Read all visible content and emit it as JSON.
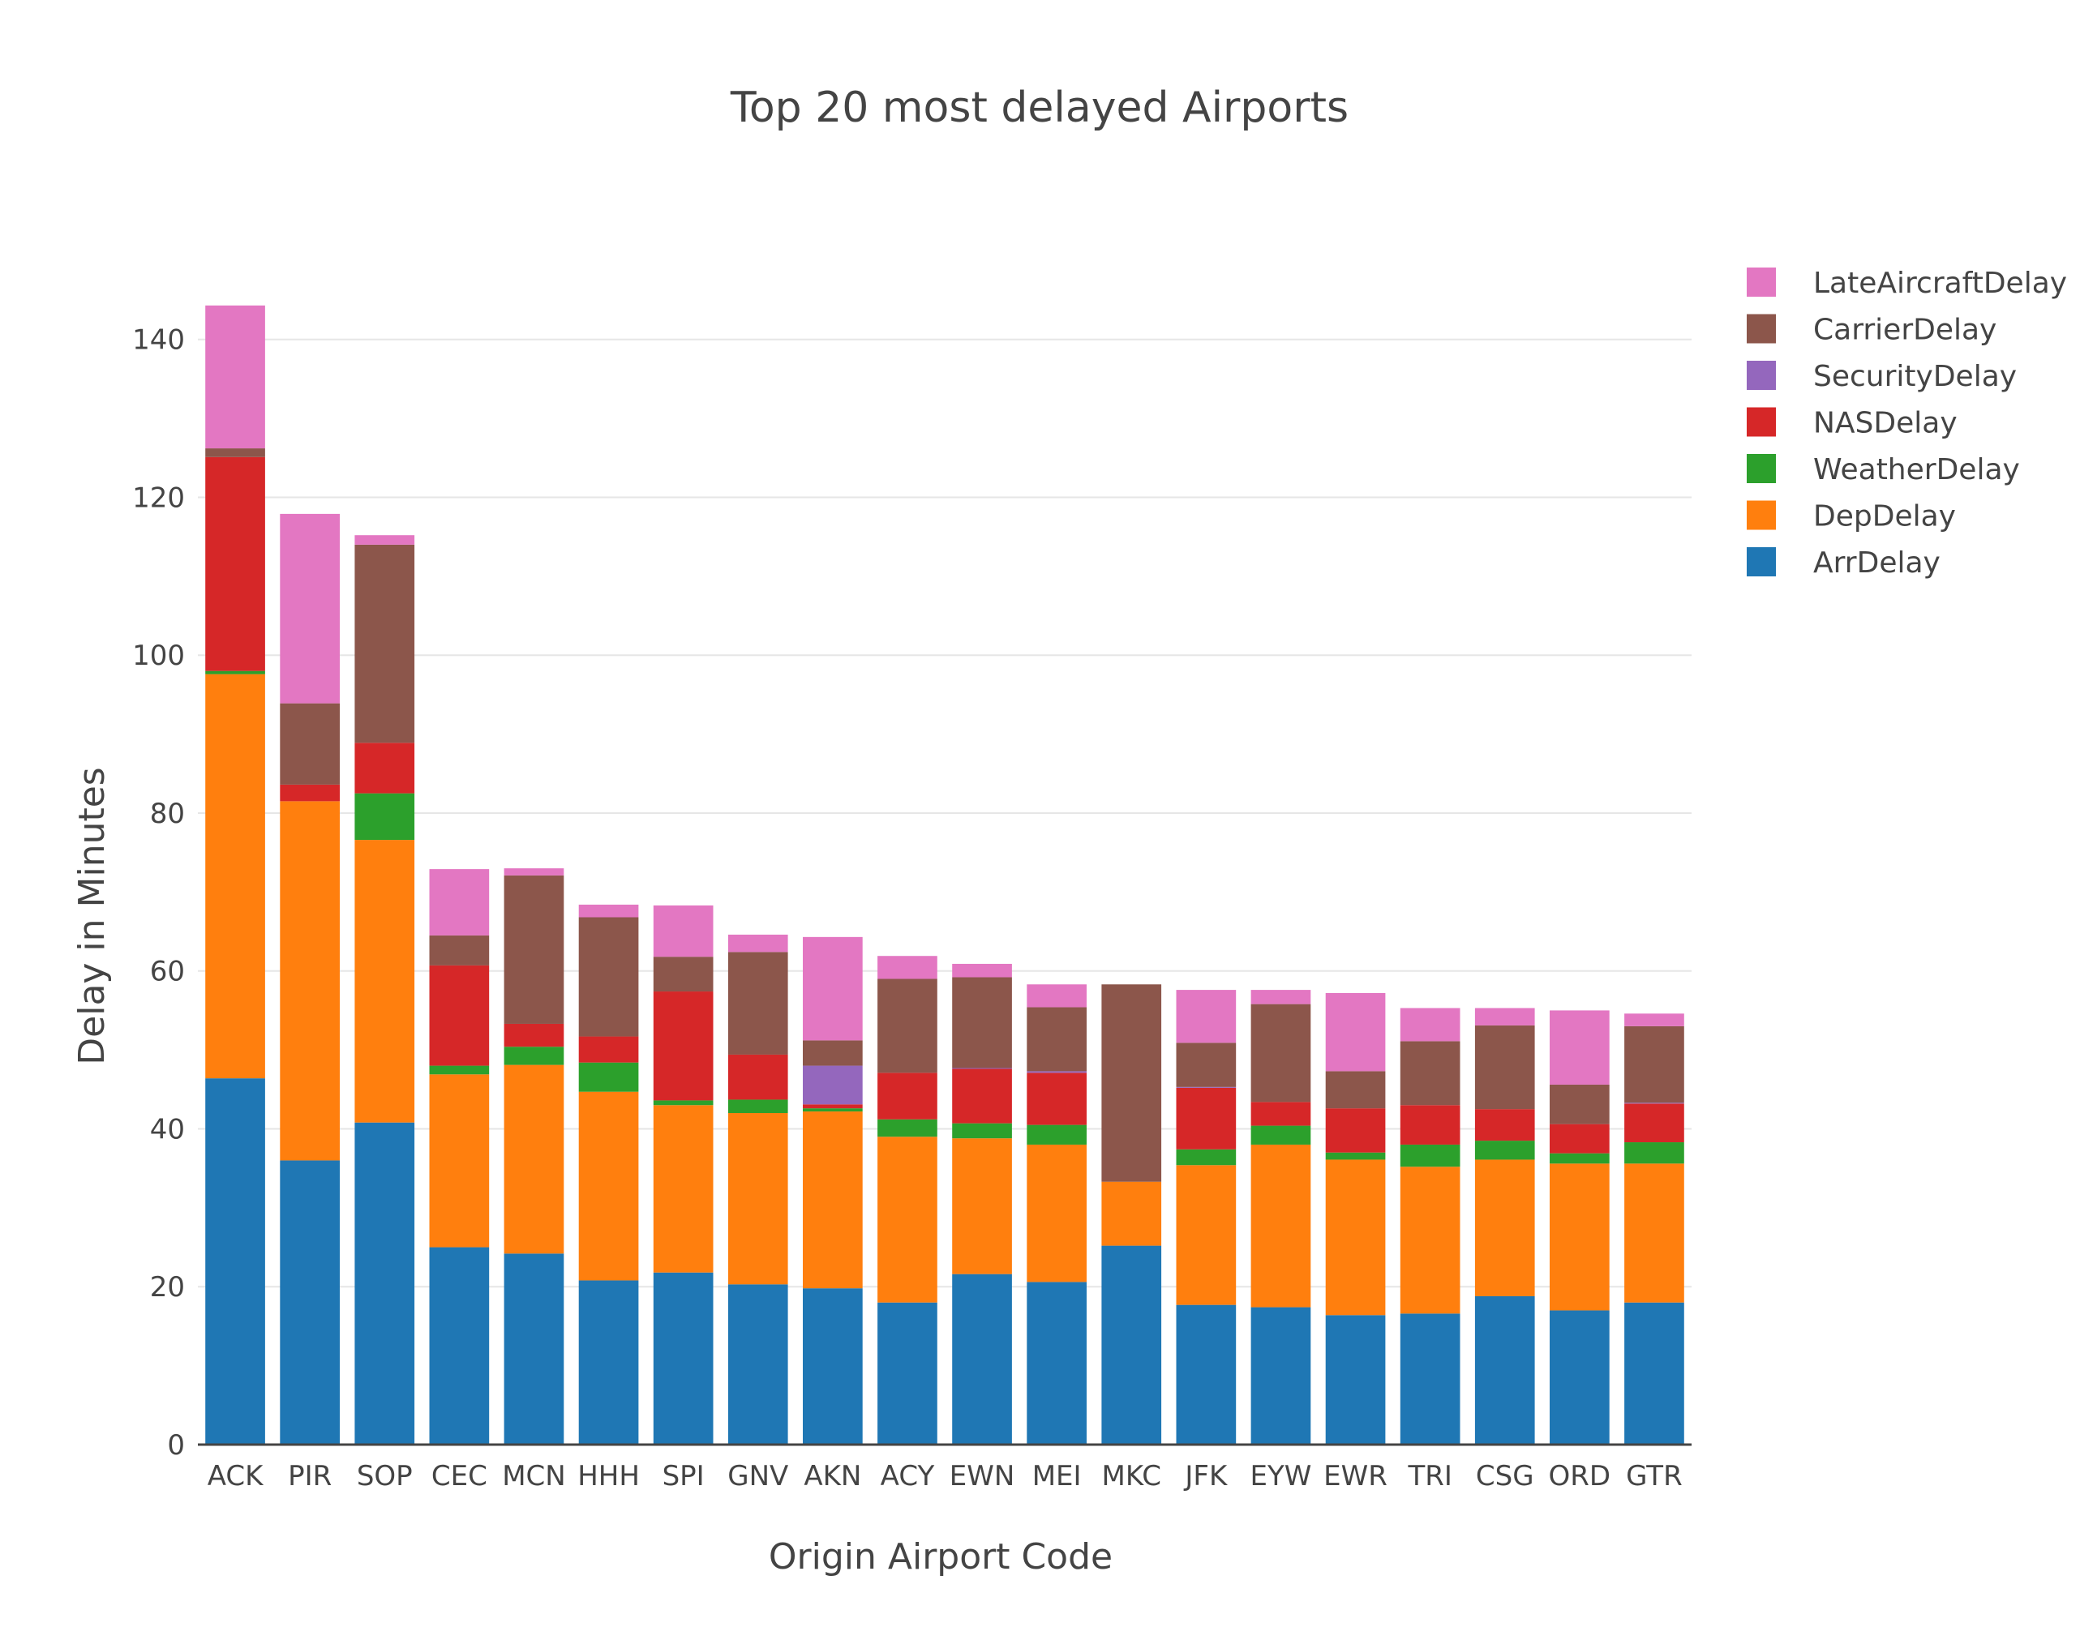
{
  "chart_data": {
    "type": "bar",
    "stacked": true,
    "title": "Top 20 most delayed Airports",
    "xlabel": "Origin Airport Code",
    "ylabel": "Delay in Minutes",
    "ylim": [
      0,
      145
    ],
    "yticks": [
      0,
      20,
      40,
      60,
      80,
      100,
      120,
      140
    ],
    "grid": true,
    "legend_position": "top-right",
    "categories": [
      "ACK",
      "PIR",
      "SOP",
      "CEC",
      "MCN",
      "HHH",
      "SPI",
      "GNV",
      "AKN",
      "ACY",
      "EWN",
      "MEI",
      "MKC",
      "JFK",
      "EYW",
      "EWR",
      "TRI",
      "CSG",
      "ORD",
      "GTR"
    ],
    "series": [
      {
        "name": "ArrDelay",
        "color": "#1f77b4",
        "values": [
          46.4,
          36.0,
          40.8,
          25.0,
          24.2,
          20.8,
          21.8,
          20.3,
          19.8,
          18.0,
          21.6,
          20.6,
          25.2,
          17.7,
          17.4,
          16.4,
          16.6,
          18.8,
          17.0,
          18.0
        ]
      },
      {
        "name": "DepDelay",
        "color": "#ff7f0e",
        "values": [
          51.2,
          45.5,
          35.8,
          21.9,
          23.9,
          23.9,
          21.2,
          21.7,
          22.4,
          21.0,
          17.2,
          17.4,
          8.1,
          17.7,
          20.6,
          19.7,
          18.6,
          17.3,
          18.6,
          17.6
        ]
      },
      {
        "name": "WeatherDelay",
        "color": "#2ca02c",
        "values": [
          0.4,
          0.0,
          5.9,
          1.1,
          2.3,
          3.7,
          0.6,
          1.7,
          0.4,
          2.2,
          1.9,
          2.5,
          0.0,
          2.0,
          2.4,
          0.9,
          2.8,
          2.4,
          1.3,
          2.7
        ]
      },
      {
        "name": "NASDelay",
        "color": "#d62728",
        "values": [
          27.1,
          2.1,
          6.4,
          12.7,
          2.9,
          3.3,
          13.8,
          5.7,
          0.5,
          5.9,
          6.9,
          6.6,
          0.0,
          7.8,
          3.0,
          5.6,
          5.0,
          4.0,
          3.7,
          4.9
        ]
      },
      {
        "name": "SecurityDelay",
        "color": "#9467bd",
        "values": [
          0.0,
          0.0,
          0.0,
          0.0,
          0.0,
          0.0,
          0.0,
          0.0,
          4.9,
          0.0,
          0.1,
          0.2,
          0.0,
          0.1,
          0.0,
          0.0,
          0.0,
          0.0,
          0.0,
          0.1
        ]
      },
      {
        "name": "CarrierDelay",
        "color": "#8c564b",
        "values": [
          1.1,
          10.3,
          25.1,
          3.8,
          18.8,
          15.1,
          4.4,
          13.0,
          3.2,
          11.9,
          11.5,
          8.1,
          25.0,
          5.6,
          12.4,
          4.7,
          8.1,
          10.6,
          5.0,
          9.7
        ]
      },
      {
        "name": "LateAircraftDelay",
        "color": "#e377c2",
        "values": [
          18.1,
          24.0,
          1.2,
          8.4,
          0.9,
          1.6,
          6.5,
          2.2,
          13.1,
          2.9,
          1.7,
          2.9,
          0.0,
          6.7,
          1.8,
          9.9,
          4.2,
          2.2,
          9.4,
          1.6
        ]
      }
    ]
  }
}
